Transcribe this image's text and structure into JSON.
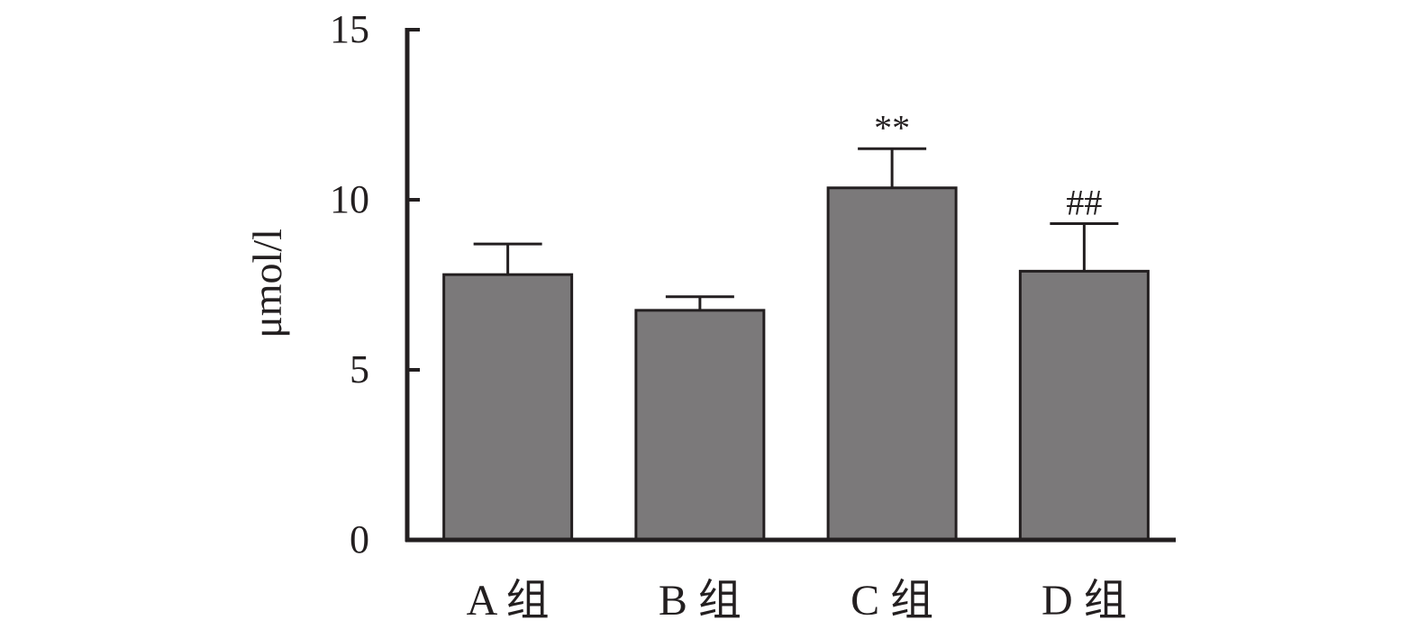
{
  "chart_data": {
    "type": "bar",
    "categories": [
      "A 组",
      "B 组",
      "C 组",
      "D 组"
    ],
    "values": [
      7.8,
      6.75,
      10.35,
      7.9
    ],
    "errors": [
      0.9,
      0.4,
      1.15,
      1.4
    ],
    "annotations": [
      "",
      "",
      "**",
      "##"
    ],
    "ylabel": "μmol/l",
    "ylim": [
      0,
      15
    ],
    "yticks": [
      0,
      5,
      10,
      15
    ],
    "bar_color": "#7b797a",
    "grid": false,
    "legend": false
  }
}
